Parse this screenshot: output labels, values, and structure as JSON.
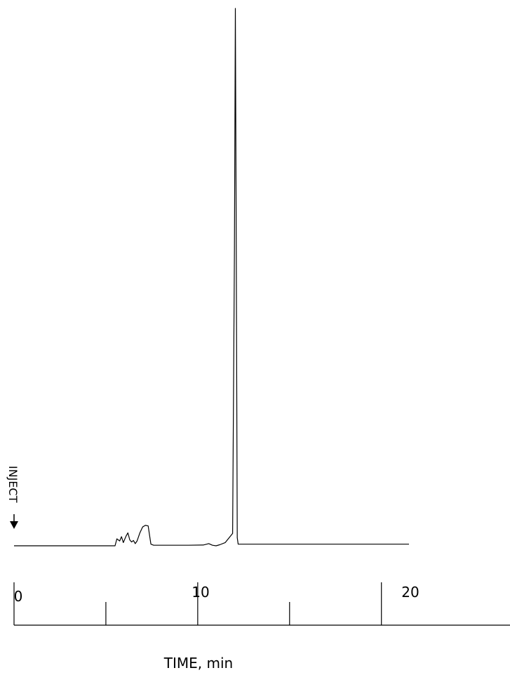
{
  "chart_data": {
    "type": "line",
    "title": "",
    "xlabel": "TIME, min",
    "ylabel": "",
    "xlim": [
      0,
      27
    ],
    "ylim": [
      0,
      1
    ],
    "x_ticks_major": [
      0,
      10,
      20
    ],
    "x_ticks_minor": [
      5,
      15
    ],
    "x_tick_labels": [
      "0",
      "10",
      "20"
    ],
    "grid": false,
    "annotations": [
      {
        "text": "INJECT",
        "x": 0,
        "arrow": "down"
      }
    ],
    "series": [
      {
        "x": [
          0,
          5.2,
          5.5,
          5.6,
          5.75,
          5.85,
          5.95,
          6.1,
          6.2,
          6.3,
          6.4,
          6.5,
          6.6,
          6.7,
          6.85,
          7.0,
          7.15,
          7.3,
          7.45,
          7.6,
          7.8,
          8.5,
          9.5,
          10.3,
          10.6,
          10.8,
          11.0,
          11.2,
          11.5,
          11.9,
          12.0,
          12.05,
          12.1,
          12.15,
          12.2,
          12.3,
          21.5
        ],
        "values": [
          0,
          0,
          0,
          0.013,
          0.009,
          0.017,
          0.006,
          0.018,
          0.024,
          0.011,
          0.007,
          0.01,
          0.004,
          0.009,
          0.024,
          0.035,
          0.038,
          0.037,
          0.003,
          0.001,
          0.001,
          0.001,
          0.001,
          0.0015,
          0.004,
          0.001,
          0.0,
          0.002,
          0.006,
          0.023,
          0.55,
          1.0,
          0.55,
          0.015,
          0.003,
          0.003,
          0.003
        ]
      }
    ]
  },
  "labels": {
    "inject": "INJECT",
    "xlabel": "TIME, min",
    "tick_0": "0",
    "tick_10": "10",
    "tick_20": "20"
  }
}
